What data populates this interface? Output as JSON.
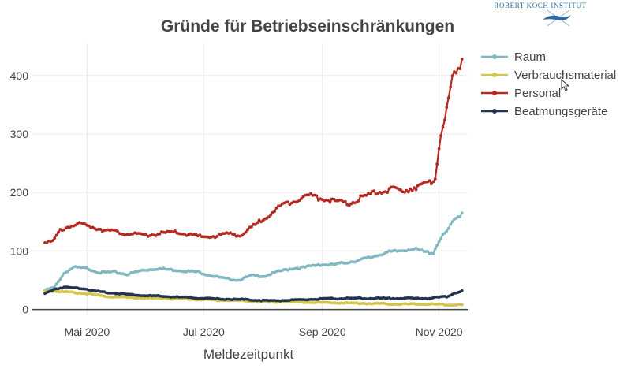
{
  "brand": {
    "logo_text": "ROBERT KOCH INSTITUT",
    "logo_color": "#2f6aa0",
    "logo_icon": "rki-logo-icon"
  },
  "chart_data": {
    "type": "line",
    "title": "Gründe für Betriebseinschränkungen",
    "xlabel": "Meldezeitpunkt",
    "ylabel": "",
    "x_ticks": [
      "Mai 2020",
      "Jul 2020",
      "Sep 2020",
      "Nov 2020"
    ],
    "y_ticks": [
      "0",
      "100",
      "200",
      "300",
      "400"
    ],
    "ylim": [
      -10,
      455
    ],
    "xlim": [
      "2020-04-02",
      "2020-11-16"
    ],
    "grid": true,
    "legend_position": "top-right",
    "series": [
      {
        "name": "Raum",
        "color": "#7fb8c0",
        "points": [
          [
            "2020-04-09",
            33
          ],
          [
            "2020-04-14",
            38
          ],
          [
            "2020-04-19",
            62
          ],
          [
            "2020-04-24",
            72
          ],
          [
            "2020-05-01",
            70
          ],
          [
            "2020-05-08",
            63
          ],
          [
            "2020-05-15",
            64
          ],
          [
            "2020-05-22",
            60
          ],
          [
            "2020-05-30",
            67
          ],
          [
            "2020-06-07",
            70
          ],
          [
            "2020-06-14",
            68
          ],
          [
            "2020-06-21",
            66
          ],
          [
            "2020-06-28",
            64
          ],
          [
            "2020-07-05",
            58
          ],
          [
            "2020-07-12",
            53
          ],
          [
            "2020-07-19",
            50
          ],
          [
            "2020-07-26",
            58
          ],
          [
            "2020-08-02",
            57
          ],
          [
            "2020-08-09",
            65
          ],
          [
            "2020-08-16",
            70
          ],
          [
            "2020-08-23",
            72
          ],
          [
            "2020-08-30",
            77
          ],
          [
            "2020-09-06",
            76
          ],
          [
            "2020-09-13",
            80
          ],
          [
            "2020-09-20",
            84
          ],
          [
            "2020-09-27",
            90
          ],
          [
            "2020-10-04",
            97
          ],
          [
            "2020-10-11",
            100
          ],
          [
            "2020-10-18",
            104
          ],
          [
            "2020-10-25",
            98
          ],
          [
            "2020-10-29",
            97
          ],
          [
            "2020-11-01",
            118
          ],
          [
            "2020-11-05",
            133
          ],
          [
            "2020-11-09",
            152
          ],
          [
            "2020-11-13",
            165
          ]
        ]
      },
      {
        "name": "Verbrauchsmaterial",
        "color": "#d4c44a",
        "points": [
          [
            "2020-04-09",
            32
          ],
          [
            "2020-04-20",
            30
          ],
          [
            "2020-05-01",
            27
          ],
          [
            "2020-05-12",
            22
          ],
          [
            "2020-05-25",
            20
          ],
          [
            "2020-06-08",
            19
          ],
          [
            "2020-06-22",
            18
          ],
          [
            "2020-07-06",
            16
          ],
          [
            "2020-07-20",
            15
          ],
          [
            "2020-08-03",
            13
          ],
          [
            "2020-08-17",
            13
          ],
          [
            "2020-08-31",
            12
          ],
          [
            "2020-09-14",
            11
          ],
          [
            "2020-09-28",
            10
          ],
          [
            "2020-10-12",
            9
          ],
          [
            "2020-10-26",
            9
          ],
          [
            "2020-11-09",
            8
          ],
          [
            "2020-11-13",
            8
          ]
        ]
      },
      {
        "name": "Personal",
        "color": "#b22a22",
        "points": [
          [
            "2020-04-09",
            117
          ],
          [
            "2020-04-13",
            115
          ],
          [
            "2020-04-17",
            135
          ],
          [
            "2020-04-22",
            143
          ],
          [
            "2020-04-28",
            146
          ],
          [
            "2020-05-05",
            140
          ],
          [
            "2020-05-12",
            135
          ],
          [
            "2020-05-19",
            131
          ],
          [
            "2020-05-26",
            128
          ],
          [
            "2020-06-02",
            127
          ],
          [
            "2020-06-09",
            130
          ],
          [
            "2020-06-16",
            132
          ],
          [
            "2020-06-23",
            128
          ],
          [
            "2020-06-30",
            124
          ],
          [
            "2020-07-07",
            125
          ],
          [
            "2020-07-14",
            130
          ],
          [
            "2020-07-21",
            127
          ],
          [
            "2020-07-28",
            145
          ],
          [
            "2020-08-04",
            162
          ],
          [
            "2020-08-11",
            178
          ],
          [
            "2020-08-18",
            188
          ],
          [
            "2020-08-25",
            195
          ],
          [
            "2020-09-01",
            190
          ],
          [
            "2020-09-08",
            185
          ],
          [
            "2020-09-15",
            180
          ],
          [
            "2020-09-22",
            192
          ],
          [
            "2020-09-29",
            200
          ],
          [
            "2020-10-06",
            205
          ],
          [
            "2020-10-13",
            203
          ],
          [
            "2020-10-20",
            210
          ],
          [
            "2020-10-27",
            215
          ],
          [
            "2020-10-30",
            228
          ],
          [
            "2020-11-02",
            300
          ],
          [
            "2020-11-05",
            345
          ],
          [
            "2020-11-08",
            390
          ],
          [
            "2020-11-11",
            410
          ],
          [
            "2020-11-13",
            428
          ]
        ]
      },
      {
        "name": "Beatmungsgeräte",
        "color": "#23334f",
        "points": [
          [
            "2020-04-09",
            27
          ],
          [
            "2020-04-14",
            35
          ],
          [
            "2020-04-19",
            38
          ],
          [
            "2020-04-29",
            36
          ],
          [
            "2020-05-08",
            30
          ],
          [
            "2020-05-18",
            27
          ],
          [
            "2020-05-30",
            24
          ],
          [
            "2020-06-12",
            22
          ],
          [
            "2020-06-25",
            20
          ],
          [
            "2020-07-08",
            18
          ],
          [
            "2020-07-22",
            17
          ],
          [
            "2020-08-04",
            15
          ],
          [
            "2020-08-18",
            16
          ],
          [
            "2020-08-31",
            18
          ],
          [
            "2020-09-14",
            19
          ],
          [
            "2020-09-28",
            19
          ],
          [
            "2020-10-12",
            19
          ],
          [
            "2020-10-26",
            19
          ],
          [
            "2020-11-05",
            22
          ],
          [
            "2020-11-09",
            28
          ],
          [
            "2020-11-13",
            32
          ]
        ]
      }
    ]
  }
}
